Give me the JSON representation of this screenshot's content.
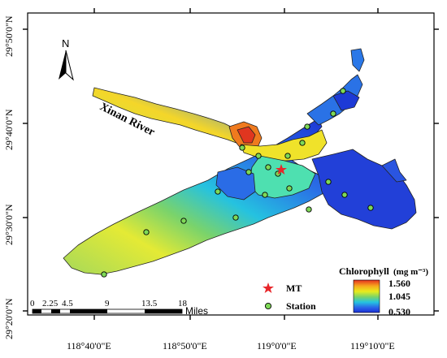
{
  "map": {
    "river_label": "Xinan River",
    "north_label": "N",
    "lat_labels": [
      "29°50'0\"N",
      "29°40'0\"N",
      "29°30'0\"N",
      "29°20'0\"N"
    ],
    "lon_labels": [
      "118°40'0\"E",
      "118°50'0\"E",
      "119°0'0\"E",
      "119°10'0\"E"
    ]
  },
  "legend": {
    "title": "Chlorophyll",
    "unit": "(mg m⁻³)",
    "max": "1.560",
    "mid": "1.045",
    "min": "0.530",
    "gradient_colors": [
      "#e53020",
      "#f7a81d",
      "#e8ec1c",
      "#79d36a",
      "#25c4e0",
      "#2a63e8",
      "#1b2fd6"
    ],
    "mt_label": "MT",
    "station_label": "Station",
    "mt_color": "#e8262a",
    "station_color": "#7ed957"
  },
  "scalebar": {
    "ticks": [
      "0",
      "2.25",
      "4.5",
      "9",
      "13.5",
      "18"
    ],
    "unit": "Miles"
  }
}
